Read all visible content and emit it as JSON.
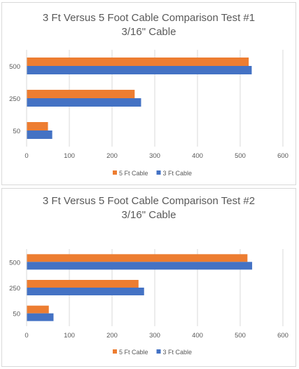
{
  "chart_data": [
    {
      "type": "bar",
      "orientation": "horizontal",
      "title": "3 Ft Versus 5 Foot Cable Comparison Test #1",
      "subtitle": "3/16\" Cable",
      "categories": [
        "50",
        "250",
        "500"
      ],
      "series": [
        {
          "name": "5 Ft Cable",
          "color": "#ed7d31",
          "values": [
            50,
            253,
            520
          ]
        },
        {
          "name": "3 Ft Cable",
          "color": "#4472c4",
          "values": [
            60,
            268,
            527
          ]
        }
      ],
      "xlim": [
        0,
        600
      ],
      "xticks": [
        0,
        100,
        200,
        300,
        400,
        500,
        600
      ],
      "grid": true,
      "legend": "bottom"
    },
    {
      "type": "bar",
      "orientation": "horizontal",
      "title": "3 Ft Versus 5 Foot Cable Comparison Test #2",
      "subtitle": "3/16\" Cable",
      "categories": [
        "50",
        "250",
        "500"
      ],
      "series": [
        {
          "name": "5 Ft Cable",
          "color": "#ed7d31",
          "values": [
            52,
            262,
            517
          ]
        },
        {
          "name": "3 Ft Cable",
          "color": "#4472c4",
          "values": [
            63,
            275,
            528
          ]
        }
      ],
      "xlim": [
        0,
        600
      ],
      "xticks": [
        0,
        100,
        200,
        300,
        400,
        500,
        600
      ],
      "grid": true,
      "legend": "bottom"
    }
  ]
}
